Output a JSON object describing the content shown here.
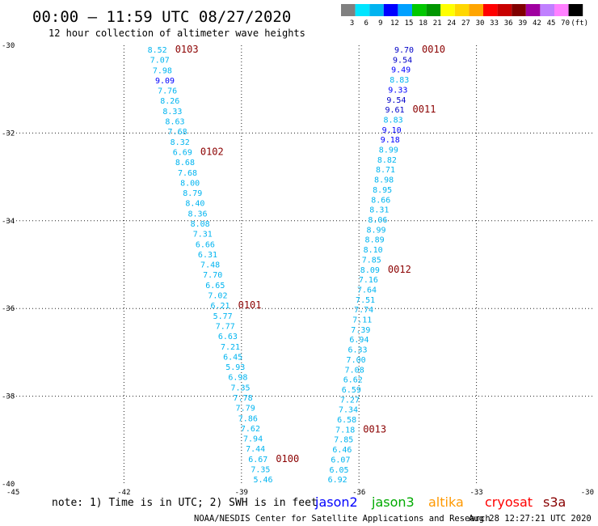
{
  "header": {
    "title": "00:00 – 11:59 UTC 08/27/2020",
    "subtitle": "12 hour collection of altimeter wave heights"
  },
  "legend": {
    "colors": [
      "#808080",
      "#00e5ff",
      "#00b4f0",
      "#0000ff",
      "#00a0ff",
      "#00c800",
      "#009600",
      "#ffff00",
      "#ffd700",
      "#ffa500",
      "#ff0000",
      "#c80000",
      "#800000",
      "#a000a0",
      "#c080ff",
      "#ff80ff",
      "#000000"
    ],
    "labels": [
      "3",
      "6",
      "9",
      "12",
      "15",
      "18",
      "21",
      "24",
      "27",
      "30",
      "33",
      "36",
      "39",
      "42",
      "45",
      "70",
      "(ft)"
    ]
  },
  "chart_data": {
    "type": "scatter",
    "xlim": [
      -45,
      -30
    ],
    "ylim": [
      -40,
      -30
    ],
    "x_ticks": [
      -45,
      -42,
      -39,
      -36,
      -33,
      -30
    ],
    "x_tick_labels": [
      "-45",
      "-42",
      "-39",
      "-36",
      "-33",
      "-30"
    ],
    "y_ticks": [
      -30,
      -32,
      -34,
      -36,
      -38,
      -40
    ],
    "y_tick_labels": [
      "-30",
      "-32",
      "-34",
      "-36",
      "-38",
      "-40"
    ],
    "grid": true,
    "tracks": [
      {
        "lon_start": -40.9,
        "lat_start": -30.0,
        "lon_end": -38.2,
        "lat_end": -39.8,
        "values": [
          "8.52",
          "7.07",
          "7.98",
          "9.09",
          "7.76",
          "8.26",
          "8.33",
          "8.63",
          "7.68",
          "8.32",
          "6.69",
          "8.68",
          "7.68",
          "8.00",
          "8.79",
          "8.40",
          "8.36",
          "8.08",
          "7.31",
          "6.66",
          "6.31",
          "7.48",
          "7.70",
          "6.65",
          "7.02",
          "6.21",
          "5.77",
          "7.77",
          "6.63",
          "7.21",
          "6.45",
          "5.93",
          "6.98",
          "7.35",
          "7.78",
          "7.79",
          "7.86",
          "7.62",
          "7.94",
          "7.44",
          "6.67",
          "7.35",
          "5.46"
        ],
        "time_labels": [
          {
            "text": "0103",
            "index": 0
          },
          {
            "text": "0102",
            "index": 10
          },
          {
            "text": "0101",
            "index": 25
          },
          {
            "text": "0100",
            "index": 40
          }
        ]
      },
      {
        "lon_start": -34.6,
        "lat_start": -30.0,
        "lon_end": -36.3,
        "lat_end": -39.8,
        "values": [
          "9.70",
          "9.54",
          "9.49",
          "8.83",
          "9.33",
          "9.54",
          "9.61",
          "8.83",
          "9.10",
          "9.18",
          "8.99",
          "8.82",
          "8.71",
          "8.98",
          "8.95",
          "8.66",
          "8.31",
          "8.06",
          "8.99",
          "8.89",
          "8.10",
          "7.85",
          "8.09",
          "7.16",
          "7.64",
          "7.51",
          "7.74",
          "7.11",
          "7.39",
          "6.94",
          "6.33",
          "7.00",
          "7.08",
          "6.62",
          "6.59",
          "7.27",
          "7.34",
          "6.58",
          "7.18",
          "7.85",
          "6.46",
          "6.07",
          "6.05",
          "6.92"
        ],
        "time_labels": [
          {
            "text": "0010",
            "index": 0
          },
          {
            "text": "0011",
            "index": 6
          },
          {
            "text": "0012",
            "index": 22
          },
          {
            "text": "0013",
            "index": 38
          }
        ]
      }
    ]
  },
  "footer": {
    "note": "note: 1) Time is in UTC; 2) SWH is in feet",
    "satellites": [
      {
        "name": "jason2",
        "color": "#0000ff"
      },
      {
        "name": "jason3",
        "color": "#00aa00"
      },
      {
        "name": "altika",
        "color": "#ff9900"
      },
      {
        "name": "cryosat",
        "color": "#ff0000"
      },
      {
        "name": "s3a",
        "color": "#880000"
      }
    ],
    "credit": "NOAA/NESDIS Center for Satellite Applications and Research",
    "timestamp": "Aug 28 12:27:21 UTC 2020"
  }
}
